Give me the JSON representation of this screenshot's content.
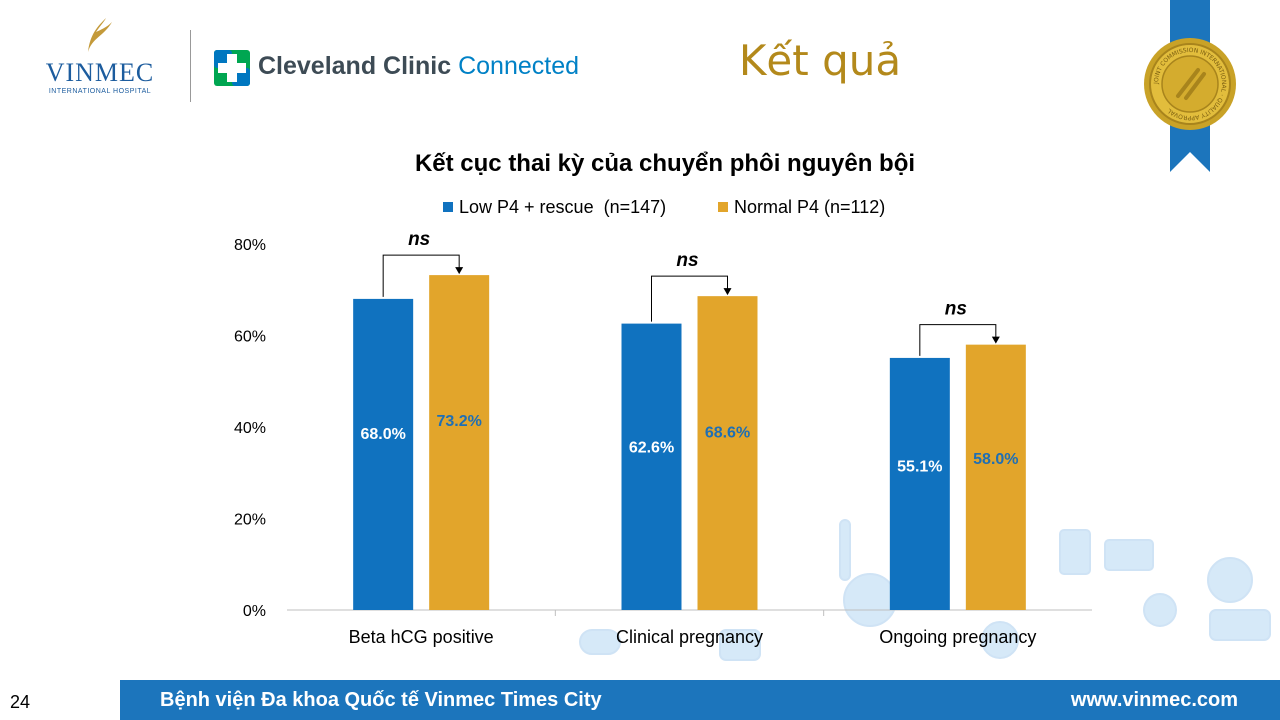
{
  "header": {
    "vinmec_name": "VINMEC",
    "vinmec_subtitle": "INTERNATIONAL HOSPITAL",
    "partner_name": "Cleveland Clinic",
    "partner_suffix": "Connected",
    "slide_title": "Kết quả",
    "seal_text": "JOINT COMMISSION INTERNATIONAL · QUALITY APPROVAL"
  },
  "chart_data": {
    "type": "bar",
    "title": "Kết cục thai kỳ của chuyển phôi nguyên bội",
    "categories": [
      "Beta hCG positive",
      "Clinical pregnancy",
      "Ongoing pregnancy"
    ],
    "series": [
      {
        "name": "Low P4 + rescue  (n=147)",
        "values": [
          68.0,
          62.6,
          55.1
        ],
        "labels": [
          "68.0%",
          "62.6%",
          "55.1%"
        ],
        "color": "#1072bf",
        "label_color": "#ffffff"
      },
      {
        "name": "Normal P4 (n=112)",
        "values": [
          73.2,
          68.6,
          58.0
        ],
        "labels": [
          "73.2%",
          "68.6%",
          "58.0%"
        ],
        "color": "#e2a52b",
        "label_color": "#1f6fb4"
      }
    ],
    "significance": [
      "ns",
      "ns",
      "ns"
    ],
    "ylim": [
      0,
      80
    ],
    "yticks": [
      "0%",
      "20%",
      "40%",
      "60%",
      "80%"
    ],
    "ytick_values": [
      0,
      20,
      40,
      60,
      80
    ],
    "grid": false,
    "legend_position": "top"
  },
  "footer": {
    "page_number": "24",
    "hospital": "Bệnh viện Đa khoa Quốc tế Vinmec Times City",
    "website": "www.vinmec.com"
  }
}
